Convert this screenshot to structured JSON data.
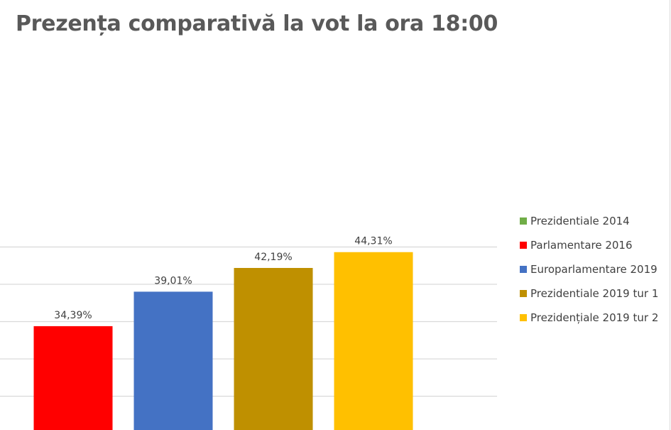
{
  "chart_data": {
    "type": "bar",
    "title": "Prezența comparativă la vot la ora 18:00",
    "xlabel": "",
    "ylabel": "",
    "ylim": [
      20,
      48
    ],
    "grid": true,
    "legend_position": "right",
    "categories": [
      "Parlamentare 2016",
      "Europarlamentare 2019",
      "Prezidentiale 2019 tur 1",
      "Prezidențiale 2019 tur 2"
    ],
    "values": [
      34.39,
      39.01,
      42.19,
      44.31
    ],
    "value_labels": [
      "34,39%",
      "39,01%",
      "42,19%",
      "44,31%"
    ],
    "colors": [
      "#ff0000",
      "#4472c4",
      "#bf9000",
      "#ffc000"
    ],
    "legend": [
      {
        "label": "Prezidentiale 2014",
        "color": "#70ad47"
      },
      {
        "label": "Parlamentare 2016",
        "color": "#ff0000"
      },
      {
        "label": "Europarlamentare 2019",
        "color": "#4472c4"
      },
      {
        "label": "Prezidentiale 2019 tur 1",
        "color": "#bf9000"
      },
      {
        "label": "Prezidențiale 2019 tur 2",
        "color": "#ffc000"
      }
    ]
  }
}
